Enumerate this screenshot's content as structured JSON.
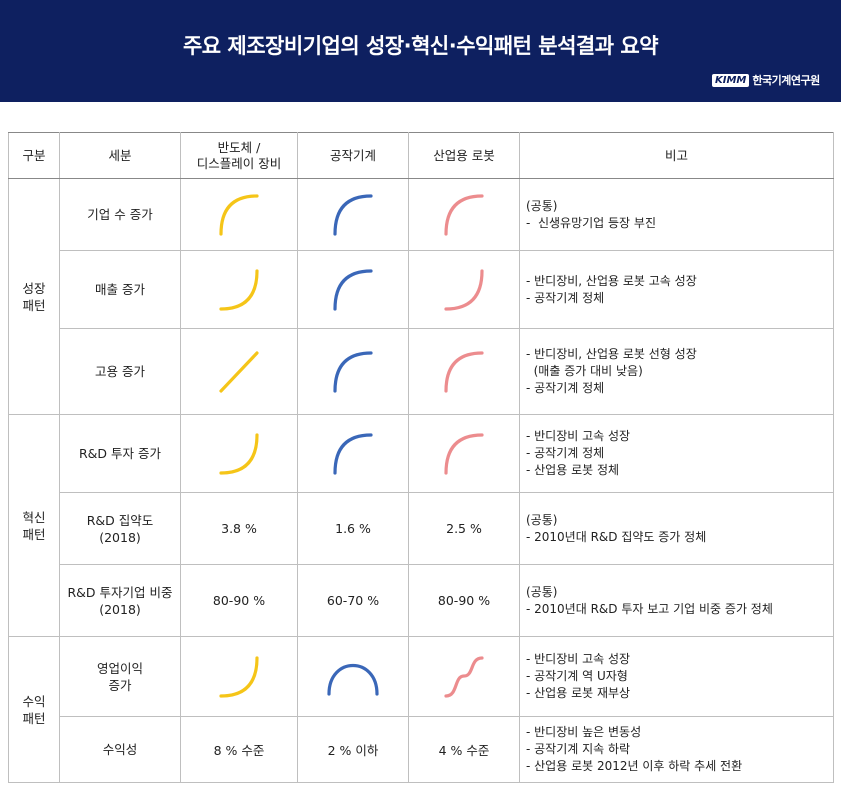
{
  "header": {
    "title": "주요 제조장비기업의 성장·혁신·수익패턴 분석결과 요약",
    "logo_badge": "KIMM",
    "logo_name": "한국기계연구원"
  },
  "colors": {
    "header_bg": "#0e2060",
    "semiconductor": "#f5c518",
    "machine_tool": "#3a67b8",
    "robot": "#ec8c8e"
  },
  "table": {
    "columns": [
      "구분",
      "세분",
      "반도체 / 디스플레이 장비",
      "공작기계",
      "산업용 로봇",
      "비고"
    ],
    "column_header_lines": {
      "semi_line1": "반도체 /",
      "semi_line2": "디스플레이 장비"
    },
    "groups": [
      {
        "name_line1": "성장",
        "name_line2": "패턴"
      },
      {
        "name_line1": "혁신",
        "name_line2": "패턴"
      },
      {
        "name_line1": "수익",
        "name_line2": "패턴"
      }
    ],
    "rows": [
      {
        "sub_line1": "기업 수 증가",
        "sub_line2": "",
        "semi": "concave-down-curve",
        "tool": "concave-down-curve",
        "robot": "concave-down-curve",
        "notes": [
          "(공통)",
          "-  신생유망기업 등장 부진"
        ]
      },
      {
        "sub_line1": "매출 증가",
        "sub_line2": "",
        "semi": "concave-up-curve",
        "tool": "concave-down-curve",
        "robot": "concave-up-curve",
        "notes": [
          "- 반디장비, 산업용 로봇 고속 성장",
          "- 공작기계 정체"
        ]
      },
      {
        "sub_line1": "고용 증가",
        "sub_line2": "",
        "semi": "linear-line",
        "tool": "concave-down-curve",
        "robot": "concave-down-curve",
        "notes": [
          "- 반디장비, 산업용 로봇 선형 성장",
          "  (매출 증가 대비 낮음)",
          "- 공작기계 정체"
        ]
      },
      {
        "sub_line1": "R&D 투자 증가",
        "sub_line2": "",
        "semi": "concave-up-curve",
        "tool": "concave-down-curve",
        "robot": "concave-down-curve",
        "notes": [
          "- 반디장비 고속 성장",
          "- 공작기계 정체",
          "- 산업용 로봇 정체"
        ]
      },
      {
        "sub_line1": "R&D 집약도",
        "sub_line2": "(2018)",
        "semi": "3.8 %",
        "tool": "1.6 %",
        "robot": "2.5 %",
        "notes": [
          "(공통)",
          "- 2010년대 R&D 집약도 증가 정체"
        ]
      },
      {
        "sub_line1": "R&D 투자기업 비중",
        "sub_line2": "(2018)",
        "semi": "80-90 %",
        "tool": "60-70 %",
        "robot": "80-90 %",
        "notes": [
          "(공통)",
          "- 2010년대 R&D 투자 보고 기업 비중 증가 정체"
        ]
      },
      {
        "sub_line1": "영업이익",
        "sub_line2": "증가",
        "semi": "concave-up-curve",
        "tool": "inverted-u-curve",
        "robot": "s-curve",
        "notes": [
          "- 반디장비 고속 성장",
          "- 공작기계 역 U자형",
          "- 산업용 로봇 재부상"
        ]
      },
      {
        "sub_line1": "수익성",
        "sub_line2": "",
        "semi": "8 % 수준",
        "tool": "2 % 이하",
        "robot": "4 % 수준",
        "notes": [
          "- 반디장비 높은 변동성",
          "- 공작기계 지속 하락",
          "- 산업용 로봇 2012년 이후 하락 추세 전환"
        ]
      }
    ]
  }
}
